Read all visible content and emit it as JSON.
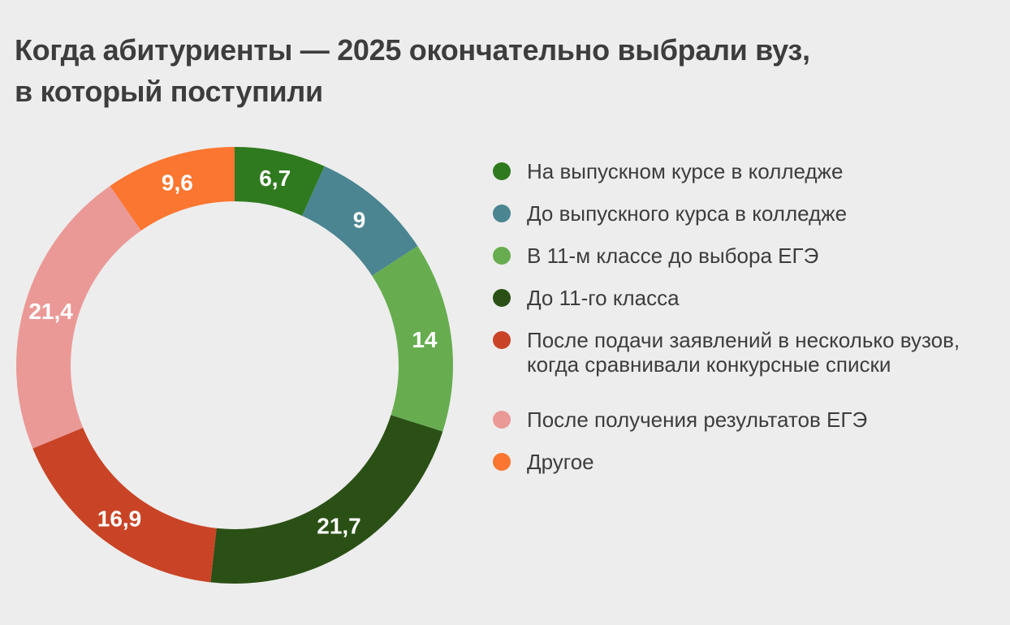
{
  "header": {
    "title_line1": "Когда абитуриенты — 2025 окончательно выбрали вуз,",
    "title_line2": "в который поступили"
  },
  "colors": {
    "background": "#ededed",
    "text": "#3d3d3d",
    "value_label": "#ffffff"
  },
  "chart_data": {
    "type": "pie",
    "variant": "donut",
    "title": "Когда абитуриенты — 2025 окончательно выбрали вуз, в который поступили",
    "unit": "percent",
    "start_angle_deg": 0,
    "direction": "clockwise",
    "legend_position": "right",
    "legend_group_gap_before_index": 5,
    "segments": [
      {
        "label": "На выпускном курсе в колледже",
        "value": 6.7,
        "value_label": "6,7",
        "color": "#2f7a1e"
      },
      {
        "label": "До выпускного курса в колледже",
        "value": 9,
        "value_label": "9",
        "color": "#4a8591"
      },
      {
        "label": "В 11-м классе до выбора ЕГЭ",
        "value": 14,
        "value_label": "14",
        "color": "#67ad50"
      },
      {
        "label": "До 11-го класса",
        "value": 21.7,
        "value_label": "21,7",
        "color": "#2b5016"
      },
      {
        "label": "После подачи заявлений в несколько вузов, когда сравнивали конкурсные списки",
        "value": 16.9,
        "value_label": "16,9",
        "color": "#c94426"
      },
      {
        "label": "После получения результатов ЕГЭ",
        "value": 21.4,
        "value_label": "21,4",
        "color": "#ea9997"
      },
      {
        "label": "Другое",
        "value": 9.6,
        "value_label": "9,6",
        "color": "#fb7630"
      }
    ]
  }
}
